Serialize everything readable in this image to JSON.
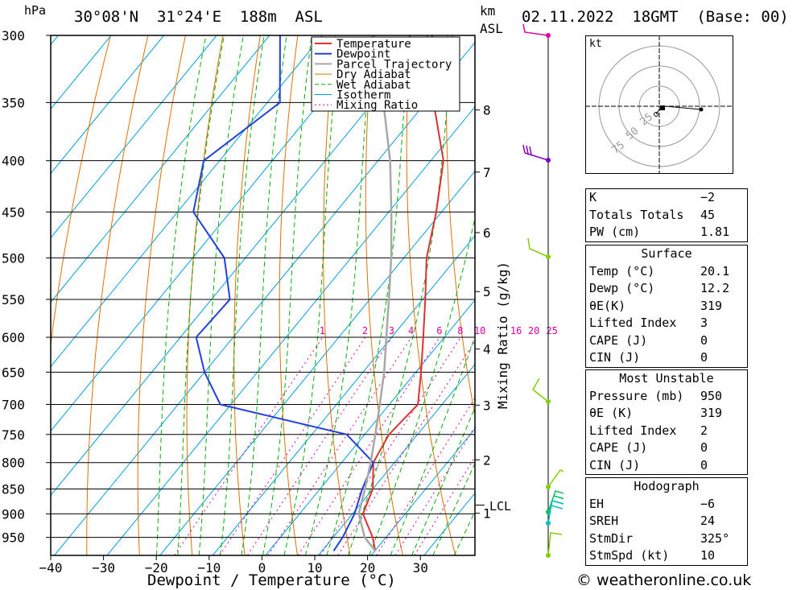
{
  "header": {
    "location": "30°08'N  31°24'E  188m  ASL",
    "pressure_unit": "hPa",
    "km_unit": "km",
    "asl_unit": "ASL",
    "datetime": "02.11.2022  18GMT  (Base: 00)"
  },
  "chart_data": {
    "type": "skew-t",
    "xlabel": "Dewpoint / Temperature (°C)",
    "ylabel_right": "Mixing Ratio (g/kg)",
    "pressure_ticks": [
      300,
      350,
      400,
      450,
      500,
      550,
      600,
      650,
      700,
      750,
      800,
      850,
      900,
      950
    ],
    "temp_ticks": [
      -40,
      -30,
      -20,
      -10,
      0,
      10,
      20,
      30
    ],
    "km_ticks": [
      1,
      2,
      3,
      4,
      5,
      6,
      7,
      8
    ],
    "lcl_label": "LCL",
    "mixing_ratio_labels": [
      "1",
      "2",
      "3",
      "4",
      "6",
      "8",
      "10",
      "16",
      "20",
      "25"
    ],
    "legend": [
      "Temperature",
      "Dewpoint",
      "Parcel Trajectory",
      "Dry Adiabat",
      "Wet Adiabat",
      "Isotherm",
      "Mixing Ratio"
    ],
    "colors": {
      "temperature": "#e03030",
      "dewpoint": "#2040e0",
      "parcel": "#a8a8a8",
      "dry_adiabat": "#e07000",
      "wet_adiabat": "#00b000",
      "isotherm": "#00a0e0",
      "mixing_ratio": "#e000a0"
    },
    "series": [
      {
        "name": "Temperature",
        "points": [
          [
            980,
            20.1
          ],
          [
            950,
            17.5
          ],
          [
            900,
            12
          ],
          [
            850,
            10
          ],
          [
            800,
            6
          ],
          [
            750,
            4.6
          ],
          [
            700,
            5.4
          ],
          [
            650,
            1
          ],
          [
            600,
            -4
          ],
          [
            550,
            -9.5
          ],
          [
            500,
            -15.7
          ],
          [
            450,
            -21
          ],
          [
            400,
            -27.6
          ],
          [
            350,
            -38.5
          ],
          [
            300,
            -49.2
          ]
        ]
      },
      {
        "name": "Dewpoint",
        "points": [
          [
            980,
            12.2
          ],
          [
            950,
            11.8
          ],
          [
            900,
            10.4
          ],
          [
            850,
            8
          ],
          [
            800,
            6
          ],
          [
            750,
            -3.4
          ],
          [
            700,
            -32
          ],
          [
            650,
            -40
          ],
          [
            600,
            -47
          ],
          [
            550,
            -46.5
          ],
          [
            500,
            -54
          ],
          [
            450,
            -67
          ],
          [
            400,
            -73
          ],
          [
            350,
            -67.6
          ],
          [
            300,
            -78
          ]
        ]
      },
      {
        "name": "Parcel Trajectory",
        "points": [
          [
            980,
            20.1
          ],
          [
            950,
            16
          ],
          [
            900,
            11.2
          ],
          [
            850,
            8.5
          ],
          [
            800,
            5.5
          ],
          [
            750,
            2
          ],
          [
            700,
            -1.8
          ],
          [
            650,
            -6
          ],
          [
            600,
            -11
          ],
          [
            550,
            -16.4
          ],
          [
            500,
            -22.4
          ],
          [
            450,
            -29.5
          ],
          [
            400,
            -37.7
          ],
          [
            350,
            -48
          ],
          [
            320,
            -54
          ]
        ]
      }
    ],
    "hodograph": {
      "unit_label": "kt",
      "ring_labels": [
        "25",
        "50",
        "75"
      ]
    }
  },
  "indices": {
    "rows": [
      {
        "label": "K",
        "value": "-2"
      },
      {
        "label": "Totals Totals",
        "value": "45"
      },
      {
        "label": "PW (cm)",
        "value": "1.81"
      }
    ]
  },
  "surface": {
    "title": "Surface",
    "rows": [
      {
        "label": "Temp (°C)",
        "value": "20.1"
      },
      {
        "label": "Dewp (°C)",
        "value": "12.2"
      },
      {
        "label": "θE(K)",
        "value": "319"
      },
      {
        "label": "Lifted Index",
        "value": "3"
      },
      {
        "label": "CAPE (J)",
        "value": "0"
      },
      {
        "label": "CIN (J)",
        "value": "0"
      }
    ]
  },
  "most_unstable": {
    "title": "Most Unstable",
    "rows": [
      {
        "label": "Pressure (mb)",
        "value": "950"
      },
      {
        "label": "θE (K)",
        "value": "319"
      },
      {
        "label": "Lifted Index",
        "value": "2"
      },
      {
        "label": "CAPE (J)",
        "value": "0"
      },
      {
        "label": "CIN (J)",
        "value": "0"
      }
    ]
  },
  "hodograph_table": {
    "title": "Hodograph",
    "rows": [
      {
        "label": "EH",
        "value": "-6"
      },
      {
        "label": "SREH",
        "value": "24"
      },
      {
        "label": "StmDir",
        "value": "325°"
      },
      {
        "label": "StmSpd (kt)",
        "value": "10"
      }
    ]
  },
  "footer": "© weatheronline.co.uk"
}
